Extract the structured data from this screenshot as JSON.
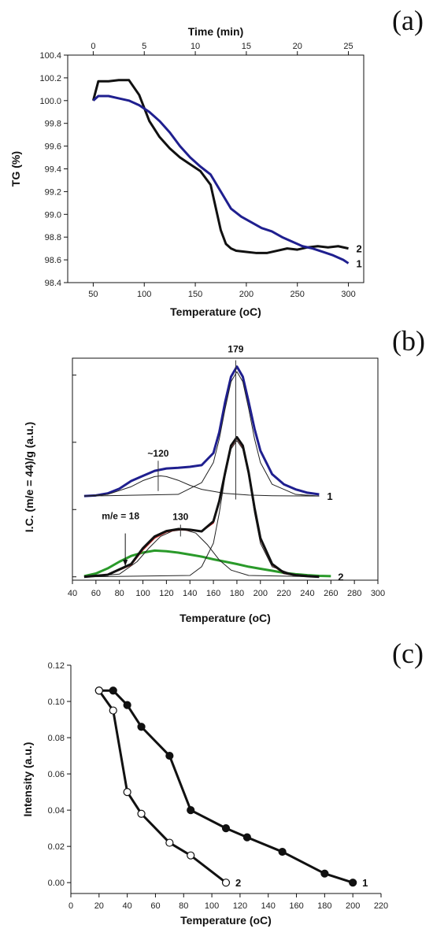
{
  "colors": {
    "black": "#111111",
    "blue": "#1f1f8f",
    "green": "#2a9a2a",
    "red": "#cc2222",
    "thin": "#222222"
  },
  "chart_data": [
    {
      "id": "a",
      "type": "line",
      "panel_label": "(a)",
      "xlabel": "Temperature (oC)",
      "ylabel": "TG (%)",
      "x2label": "Time (min)",
      "xlim": [
        25,
        315
      ],
      "ylim": [
        98.4,
        100.4
      ],
      "x_ticks": [
        50,
        100,
        150,
        200,
        250,
        300
      ],
      "y_ticks": [
        98.4,
        98.6,
        98.8,
        99.0,
        99.2,
        99.4,
        99.6,
        99.8,
        100.0,
        100.2,
        100.4
      ],
      "y_tick_labels": [
        "98.4",
        "98.6",
        "98.8",
        "99.0",
        "99.2",
        "99.4",
        "99.6",
        "99.8",
        "100.0",
        "100.2",
        "100.4"
      ],
      "x2_ticks": [
        0,
        5,
        10,
        15,
        20,
        25
      ],
      "x2_map": {
        "t0": 0,
        "x0": 50,
        "per_min": 10
      },
      "series": [
        {
          "name": "2",
          "color": "black",
          "x": [
            50,
            55,
            65,
            75,
            85,
            95,
            105,
            115,
            125,
            135,
            145,
            155,
            165,
            170,
            175,
            180,
            185,
            190,
            200,
            210,
            220,
            230,
            240,
            250,
            260,
            270,
            280,
            290,
            300
          ],
          "y": [
            100.0,
            100.17,
            100.17,
            100.18,
            100.18,
            100.05,
            99.82,
            99.68,
            99.58,
            99.5,
            99.44,
            99.38,
            99.26,
            99.06,
            98.86,
            98.74,
            98.7,
            98.68,
            98.67,
            98.66,
            98.66,
            98.68,
            98.7,
            98.69,
            98.71,
            98.72,
            98.71,
            98.72,
            98.7
          ]
        },
        {
          "name": "1",
          "color": "blue",
          "x": [
            50,
            55,
            65,
            75,
            85,
            95,
            105,
            115,
            125,
            135,
            145,
            155,
            165,
            175,
            185,
            195,
            205,
            215,
            225,
            235,
            245,
            255,
            265,
            275,
            285,
            295,
            300
          ],
          "y": [
            100.0,
            100.04,
            100.04,
            100.02,
            100.0,
            99.96,
            99.9,
            99.82,
            99.72,
            99.6,
            99.5,
            99.42,
            99.35,
            99.2,
            99.05,
            98.98,
            98.93,
            98.88,
            98.85,
            98.8,
            98.76,
            98.72,
            98.7,
            98.67,
            98.64,
            98.6,
            98.57
          ]
        }
      ]
    },
    {
      "id": "b",
      "type": "line",
      "panel_label": "(b)",
      "xlabel": "Temperature (oC)",
      "ylabel": "I.C. (m/e = 44)/g (a.u.)",
      "xlim": [
        40,
        300
      ],
      "ylim": [
        -0.1,
        6.5
      ],
      "x_ticks": [
        40,
        60,
        80,
        100,
        120,
        140,
        160,
        180,
        200,
        220,
        240,
        260,
        280,
        300
      ],
      "y_ticks_unlabeled": [
        0,
        2,
        4,
        6
      ],
      "annotations": [
        {
          "text": "179",
          "x": 179,
          "y": 6.35
        },
        {
          "text": "~120",
          "x": 113,
          "y": 3.5
        },
        {
          "text": "130",
          "x": 132,
          "y": 1.6
        },
        {
          "text": "m/e = 18",
          "x": 85,
          "y": 1.2
        }
      ],
      "series": [
        {
          "name": "1",
          "color": "blue",
          "width": 3,
          "x": [
            50,
            60,
            70,
            80,
            90,
            100,
            110,
            120,
            130,
            140,
            150,
            160,
            165,
            170,
            175,
            180,
            185,
            190,
            195,
            200,
            210,
            220,
            230,
            240,
            250
          ],
          "y": [
            2.4,
            2.42,
            2.48,
            2.62,
            2.85,
            3.0,
            3.15,
            3.22,
            3.24,
            3.27,
            3.32,
            3.68,
            4.3,
            5.2,
            5.95,
            6.25,
            5.95,
            5.2,
            4.4,
            3.75,
            3.05,
            2.75,
            2.6,
            2.5,
            2.45
          ]
        },
        {
          "name": "1 fit peak ~120",
          "color": "thin",
          "width": 1,
          "x": [
            50,
            70,
            90,
            100,
            110,
            115,
            120,
            130,
            140,
            150,
            170,
            190,
            210,
            250
          ],
          "y": [
            2.4,
            2.45,
            2.68,
            2.86,
            2.98,
            3.0,
            2.98,
            2.87,
            2.72,
            2.6,
            2.48,
            2.43,
            2.41,
            2.4
          ]
        },
        {
          "name": "1 fit peak 179",
          "color": "thin",
          "width": 1,
          "x": [
            50,
            130,
            150,
            160,
            165,
            170,
            175,
            180,
            185,
            190,
            195,
            200,
            210,
            230,
            250
          ],
          "y": [
            2.4,
            2.45,
            2.8,
            3.4,
            4.1,
            5.0,
            5.8,
            6.1,
            5.8,
            5.0,
            4.1,
            3.4,
            2.75,
            2.45,
            2.4
          ]
        },
        {
          "name": "m/e = 18",
          "color": "green",
          "width": 3,
          "x": [
            50,
            60,
            70,
            80,
            90,
            100,
            110,
            120,
            130,
            140,
            150,
            160,
            170,
            180,
            190,
            200,
            210,
            220,
            230,
            240,
            250,
            260
          ],
          "y": [
            0.02,
            0.1,
            0.25,
            0.45,
            0.62,
            0.72,
            0.78,
            0.76,
            0.72,
            0.66,
            0.6,
            0.52,
            0.45,
            0.38,
            0.3,
            0.24,
            0.18,
            0.12,
            0.08,
            0.05,
            0.03,
            0.02
          ]
        },
        {
          "name": "2 fit peak 130",
          "color": "thin",
          "width": 1,
          "x": [
            50,
            80,
            95,
            105,
            115,
            125,
            135,
            145,
            155,
            165,
            175,
            190,
            250
          ],
          "y": [
            0.0,
            0.08,
            0.45,
            0.85,
            1.2,
            1.36,
            1.4,
            1.3,
            0.95,
            0.5,
            0.2,
            0.04,
            0.0
          ]
        },
        {
          "name": "2 fit peak 179",
          "color": "thin",
          "width": 1,
          "x": [
            50,
            140,
            150,
            160,
            165,
            170,
            175,
            180,
            185,
            190,
            195,
            200,
            210,
            230,
            250
          ],
          "y": [
            0.0,
            0.04,
            0.3,
            1.0,
            1.9,
            3.0,
            3.8,
            4.05,
            3.8,
            3.0,
            1.9,
            1.0,
            0.3,
            0.04,
            0.0
          ]
        },
        {
          "name": "2 fit sum",
          "color": "red",
          "width": 1.5,
          "x": [
            50,
            70,
            90,
            100,
            110,
            120,
            130,
            140,
            150,
            160,
            165,
            170,
            175,
            180,
            185,
            190,
            195,
            200,
            210,
            220,
            230,
            240,
            250
          ],
          "y": [
            0.0,
            0.05,
            0.35,
            0.8,
            1.15,
            1.33,
            1.4,
            1.38,
            1.35,
            1.6,
            2.2,
            3.05,
            3.85,
            4.12,
            3.85,
            3.05,
            2.0,
            1.1,
            0.35,
            0.1,
            0.04,
            0.01,
            0.0
          ]
        },
        {
          "name": "2",
          "color": "black",
          "width": 3,
          "x": [
            50,
            70,
            90,
            100,
            110,
            120,
            130,
            140,
            150,
            160,
            165,
            170,
            175,
            180,
            185,
            190,
            195,
            200,
            210,
            220,
            230,
            240,
            250
          ],
          "y": [
            0.0,
            0.06,
            0.38,
            0.85,
            1.2,
            1.36,
            1.42,
            1.4,
            1.35,
            1.65,
            2.25,
            3.1,
            3.9,
            4.15,
            3.9,
            3.1,
            2.05,
            1.15,
            0.38,
            0.12,
            0.05,
            0.02,
            0.0
          ]
        }
      ]
    },
    {
      "id": "c",
      "type": "line",
      "panel_label": "(c)",
      "xlabel": "Temperature (oC)",
      "ylabel": "Intensity (a.u.)",
      "xlim": [
        0,
        220
      ],
      "ylim": [
        -0.006,
        0.12
      ],
      "x_ticks": [
        0,
        20,
        40,
        60,
        80,
        100,
        120,
        140,
        160,
        180,
        200,
        220
      ],
      "y_ticks": [
        0.0,
        0.02,
        0.04,
        0.06,
        0.08,
        0.1,
        0.12
      ],
      "y_tick_labels": [
        "0.00",
        "0.02",
        "0.04",
        "0.06",
        "0.08",
        "0.10",
        "0.12"
      ],
      "series": [
        {
          "name": "1",
          "marker": "filled",
          "x": [
            20,
            30,
            40,
            50,
            70,
            85,
            110,
            125,
            150,
            180,
            200
          ],
          "y": [
            0.106,
            0.106,
            0.098,
            0.086,
            0.07,
            0.04,
            0.03,
            0.025,
            0.017,
            0.005,
            0.0
          ]
        },
        {
          "name": "2",
          "marker": "open",
          "x": [
            20,
            30,
            40,
            50,
            70,
            85,
            110
          ],
          "y": [
            0.106,
            0.095,
            0.05,
            0.038,
            0.022,
            0.015,
            0.0
          ]
        }
      ]
    }
  ]
}
